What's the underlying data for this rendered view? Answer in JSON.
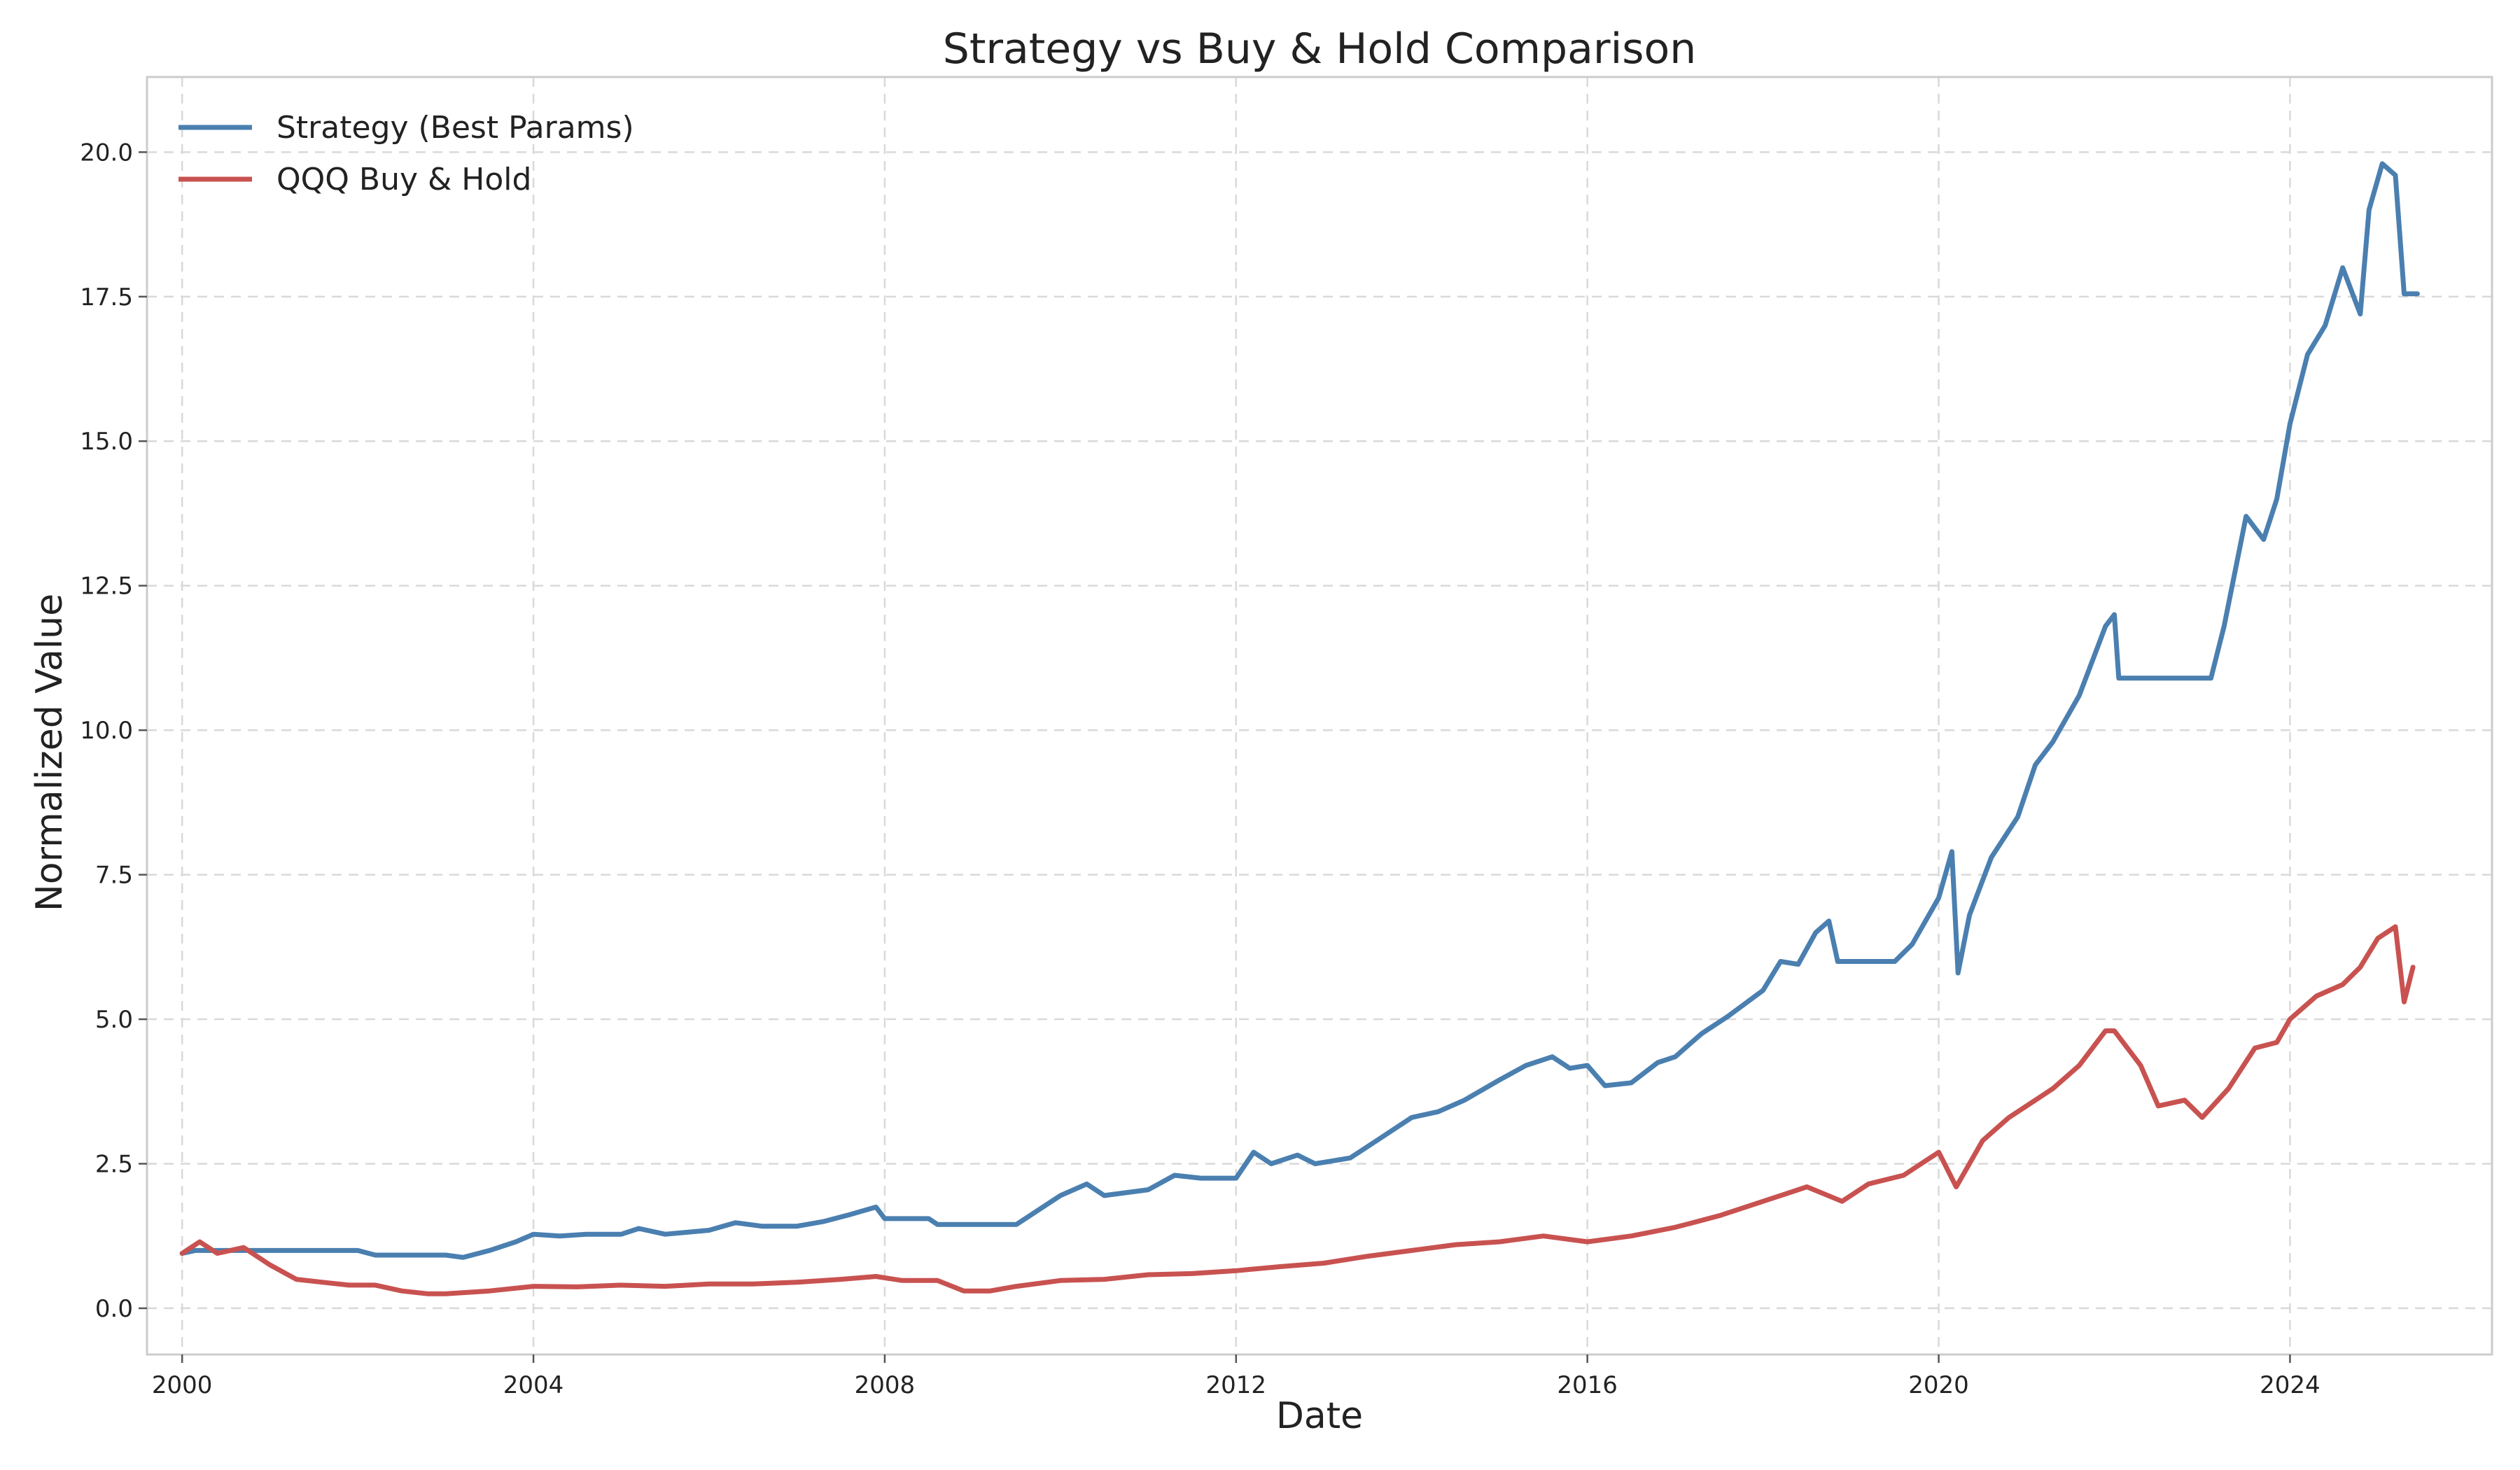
{
  "chart_data": {
    "type": "line",
    "title": "Strategy vs Buy & Hold Comparison",
    "xlabel": "Date",
    "ylabel": "Normalized Value",
    "xlim": [
      1999.6,
      2026.3
    ],
    "ylim": [
      -0.8,
      21.3
    ],
    "x_ticks": [
      2000,
      2004,
      2008,
      2012,
      2016,
      2020,
      2024
    ],
    "x_tick_labels": [
      "2000",
      "2004",
      "2008",
      "2012",
      "2016",
      "2020",
      "2024"
    ],
    "y_ticks": [
      0,
      2.5,
      5,
      7.5,
      10,
      12.5,
      15,
      17.5,
      20
    ],
    "y_tick_labels": [
      "0.0",
      "2.5",
      "5.0",
      "7.5",
      "10.0",
      "12.5",
      "15.0",
      "17.5",
      "20.0"
    ],
    "grid": true,
    "legend_position": "top-left",
    "series": [
      {
        "name": "Strategy (Best Params)",
        "color": "#4a7fb0",
        "points": [
          [
            2000.0,
            0.95
          ],
          [
            2000.15,
            1.0
          ],
          [
            2000.3,
            1.0
          ],
          [
            2001.0,
            1.0
          ],
          [
            2002.0,
            1.0
          ],
          [
            2002.2,
            0.92
          ],
          [
            2003.0,
            0.92
          ],
          [
            2003.2,
            0.88
          ],
          [
            2003.5,
            1.0
          ],
          [
            2003.8,
            1.15
          ],
          [
            2004.0,
            1.28
          ],
          [
            2004.3,
            1.25
          ],
          [
            2004.6,
            1.28
          ],
          [
            2005.0,
            1.28
          ],
          [
            2005.2,
            1.38
          ],
          [
            2005.5,
            1.28
          ],
          [
            2006.0,
            1.35
          ],
          [
            2006.3,
            1.48
          ],
          [
            2006.6,
            1.42
          ],
          [
            2007.0,
            1.42
          ],
          [
            2007.3,
            1.5
          ],
          [
            2007.6,
            1.62
          ],
          [
            2007.9,
            1.75
          ],
          [
            2008.0,
            1.55
          ],
          [
            2008.5,
            1.55
          ],
          [
            2008.6,
            1.45
          ],
          [
            2009.5,
            1.45
          ],
          [
            2009.7,
            1.65
          ],
          [
            2010.0,
            1.95
          ],
          [
            2010.3,
            2.15
          ],
          [
            2010.5,
            1.95
          ],
          [
            2011.0,
            2.05
          ],
          [
            2011.3,
            2.3
          ],
          [
            2011.6,
            2.25
          ],
          [
            2012.0,
            2.25
          ],
          [
            2012.2,
            2.7
          ],
          [
            2012.4,
            2.5
          ],
          [
            2012.7,
            2.65
          ],
          [
            2012.9,
            2.5
          ],
          [
            2013.3,
            2.6
          ],
          [
            2013.6,
            2.9
          ],
          [
            2014.0,
            3.3
          ],
          [
            2014.3,
            3.4
          ],
          [
            2014.6,
            3.6
          ],
          [
            2015.0,
            3.95
          ],
          [
            2015.3,
            4.2
          ],
          [
            2015.6,
            4.35
          ],
          [
            2015.8,
            4.15
          ],
          [
            2016.0,
            4.2
          ],
          [
            2016.2,
            3.85
          ],
          [
            2016.5,
            3.9
          ],
          [
            2016.8,
            4.25
          ],
          [
            2017.0,
            4.35
          ],
          [
            2017.3,
            4.75
          ],
          [
            2017.6,
            5.05
          ],
          [
            2018.0,
            5.5
          ],
          [
            2018.2,
            6.0
          ],
          [
            2018.4,
            5.95
          ],
          [
            2018.6,
            6.5
          ],
          [
            2018.75,
            6.7
          ],
          [
            2018.85,
            6.0
          ],
          [
            2019.0,
            6.0
          ],
          [
            2019.5,
            6.0
          ],
          [
            2019.7,
            6.3
          ],
          [
            2020.0,
            7.1
          ],
          [
            2020.15,
            7.9
          ],
          [
            2020.22,
            5.8
          ],
          [
            2020.35,
            6.8
          ],
          [
            2020.6,
            7.8
          ],
          [
            2020.9,
            8.5
          ],
          [
            2021.1,
            9.4
          ],
          [
            2021.3,
            9.8
          ],
          [
            2021.6,
            10.6
          ],
          [
            2021.9,
            11.8
          ],
          [
            2022.0,
            12.0
          ],
          [
            2022.05,
            10.9
          ],
          [
            2022.5,
            10.9
          ],
          [
            2023.1,
            10.9
          ],
          [
            2023.25,
            11.8
          ],
          [
            2023.5,
            13.7
          ],
          [
            2023.7,
            13.3
          ],
          [
            2023.85,
            14.0
          ],
          [
            2024.0,
            15.3
          ],
          [
            2024.2,
            16.5
          ],
          [
            2024.4,
            17.0
          ],
          [
            2024.6,
            18.0
          ],
          [
            2024.8,
            17.2
          ],
          [
            2024.9,
            19.0
          ],
          [
            2025.05,
            19.8
          ],
          [
            2025.2,
            19.6
          ],
          [
            2025.3,
            17.55
          ],
          [
            2025.45,
            17.55
          ]
        ]
      },
      {
        "name": "QQQ Buy & Hold",
        "color": "#c85250",
        "points": [
          [
            2000.0,
            0.95
          ],
          [
            2000.2,
            1.15
          ],
          [
            2000.4,
            0.95
          ],
          [
            2000.7,
            1.05
          ],
          [
            2001.0,
            0.75
          ],
          [
            2001.3,
            0.5
          ],
          [
            2001.6,
            0.45
          ],
          [
            2001.9,
            0.4
          ],
          [
            2002.2,
            0.4
          ],
          [
            2002.5,
            0.3
          ],
          [
            2002.8,
            0.25
          ],
          [
            2003.0,
            0.25
          ],
          [
            2003.5,
            0.3
          ],
          [
            2004.0,
            0.38
          ],
          [
            2004.5,
            0.37
          ],
          [
            2005.0,
            0.4
          ],
          [
            2005.5,
            0.38
          ],
          [
            2006.0,
            0.42
          ],
          [
            2006.5,
            0.42
          ],
          [
            2007.0,
            0.45
          ],
          [
            2007.5,
            0.5
          ],
          [
            2007.9,
            0.55
          ],
          [
            2008.2,
            0.48
          ],
          [
            2008.6,
            0.48
          ],
          [
            2008.9,
            0.3
          ],
          [
            2009.2,
            0.3
          ],
          [
            2009.5,
            0.38
          ],
          [
            2010.0,
            0.48
          ],
          [
            2010.5,
            0.5
          ],
          [
            2011.0,
            0.58
          ],
          [
            2011.5,
            0.6
          ],
          [
            2012.0,
            0.65
          ],
          [
            2012.5,
            0.72
          ],
          [
            2013.0,
            0.78
          ],
          [
            2013.5,
            0.9
          ],
          [
            2014.0,
            1.0
          ],
          [
            2014.5,
            1.1
          ],
          [
            2015.0,
            1.15
          ],
          [
            2015.5,
            1.25
          ],
          [
            2016.0,
            1.15
          ],
          [
            2016.5,
            1.25
          ],
          [
            2017.0,
            1.4
          ],
          [
            2017.5,
            1.6
          ],
          [
            2018.0,
            1.85
          ],
          [
            2018.5,
            2.1
          ],
          [
            2018.9,
            1.85
          ],
          [
            2019.2,
            2.15
          ],
          [
            2019.6,
            2.3
          ],
          [
            2020.0,
            2.7
          ],
          [
            2020.2,
            2.1
          ],
          [
            2020.5,
            2.9
          ],
          [
            2020.8,
            3.3
          ],
          [
            2021.0,
            3.5
          ],
          [
            2021.3,
            3.8
          ],
          [
            2021.6,
            4.2
          ],
          [
            2021.9,
            4.8
          ],
          [
            2022.0,
            4.8
          ],
          [
            2022.3,
            4.2
          ],
          [
            2022.5,
            3.5
          ],
          [
            2022.8,
            3.6
          ],
          [
            2023.0,
            3.3
          ],
          [
            2023.3,
            3.8
          ],
          [
            2023.6,
            4.5
          ],
          [
            2023.85,
            4.6
          ],
          [
            2024.0,
            5.0
          ],
          [
            2024.3,
            5.4
          ],
          [
            2024.6,
            5.6
          ],
          [
            2024.8,
            5.9
          ],
          [
            2025.0,
            6.4
          ],
          [
            2025.2,
            6.6
          ],
          [
            2025.3,
            5.3
          ],
          [
            2025.4,
            5.9
          ]
        ]
      }
    ]
  }
}
